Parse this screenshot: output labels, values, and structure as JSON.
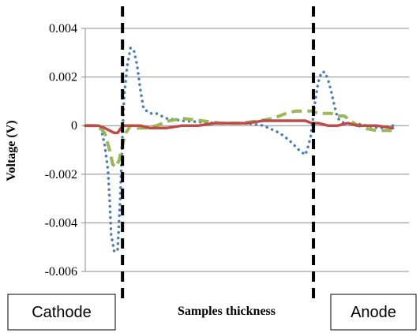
{
  "chart_data": {
    "type": "line",
    "title": "",
    "xlabel": "Samples thickness",
    "ylabel": "Voltage (V)",
    "ylim": [
      -0.006,
      0.004
    ],
    "yticks": [
      0.004,
      0.002,
      0,
      -0.002,
      -0.004,
      -0.006
    ],
    "ytick_labels": [
      "0.004",
      "0.002",
      "0",
      "-0.002",
      "-0.004",
      "-0.006"
    ],
    "x_range": [
      0,
      100
    ],
    "grid": "horizontal",
    "interfaces": [
      11.5,
      70.5
    ],
    "region_labels": {
      "left": "Cathode",
      "right": "Anode"
    },
    "series": [
      {
        "color": "#4a7ebb",
        "style": "dotted",
        "x": [
          0,
          2,
          4,
          5,
          6,
          7,
          7.5,
          8,
          9,
          10,
          10.8,
          11.5,
          12,
          13,
          14,
          15,
          16,
          17,
          18,
          20,
          22,
          25,
          30,
          40,
          50,
          55,
          60,
          63,
          66,
          68,
          69,
          69.7,
          70.3,
          71,
          72,
          73,
          74,
          75,
          76,
          77,
          78,
          80,
          83,
          87,
          91,
          95
        ],
        "y": [
          0,
          0,
          0,
          -0.0002,
          -0.0008,
          -0.0018,
          -0.003,
          -0.0045,
          -0.0052,
          -0.0051,
          -0.003,
          -0.0003,
          0.0012,
          0.0025,
          0.0032,
          0.0031,
          0.0025,
          0.0015,
          0.0007,
          0.0005,
          0.0005,
          0.0003,
          0.0002,
          0.0001,
          0.0001,
          0,
          -0.0003,
          -0.0006,
          -0.001,
          -0.0012,
          -0.0008,
          -0.0004,
          0.0002,
          0.001,
          0.0018,
          0.0022,
          0.0022,
          0.0019,
          0.0014,
          0.0008,
          0.0003,
          0.0001,
          0.0001,
          0,
          -0.0001,
          0
        ]
      },
      {
        "color": "#98b954",
        "style": "dashed",
        "x": [
          0,
          4,
          6,
          7.5,
          8.5,
          9.5,
          10.5,
          11.5,
          12.5,
          14,
          16,
          19,
          22,
          26,
          30,
          36,
          42,
          48,
          54,
          58,
          62,
          65,
          68,
          70,
          72,
          74,
          76,
          78,
          80,
          83,
          86,
          90,
          95
        ],
        "y": [
          0,
          0,
          -0.0003,
          -0.001,
          -0.0016,
          -0.0017,
          -0.0014,
          -0.0008,
          -0.0003,
          0,
          -0.0001,
          -0.0001,
          0,
          0.0002,
          0.0003,
          0.0002,
          0.0001,
          0.0001,
          0.0002,
          0.0003,
          0.0005,
          0.0006,
          0.0006,
          0.0006,
          0.0005,
          0.0005,
          0.0005,
          0.0004,
          0.0004,
          0.0001,
          -0.0001,
          -0.0002,
          -0.0002
        ]
      },
      {
        "color": "#be4b48",
        "style": "solid",
        "x": [
          0,
          4,
          6,
          7.5,
          9,
          10,
          11,
          12,
          14,
          17,
          20,
          25,
          30,
          35,
          40,
          45,
          50,
          55,
          60,
          65,
          68,
          70,
          72,
          75,
          78,
          81,
          84,
          87,
          90,
          95
        ],
        "y": [
          0,
          0,
          -0.0001,
          -0.0002,
          -0.0003,
          -0.0003,
          -0.0001,
          0,
          0,
          0,
          -0.0001,
          -0.0001,
          0,
          0,
          0.0001,
          0.0001,
          0.0001,
          0.0002,
          0.0002,
          0.0002,
          0.0002,
          0.0001,
          0.0001,
          0,
          0,
          0.0001,
          0,
          0,
          0,
          -0.0001
        ]
      }
    ]
  }
}
